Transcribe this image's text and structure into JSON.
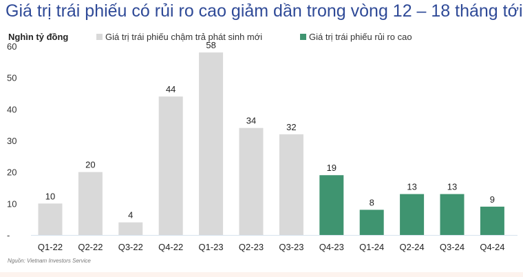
{
  "chart_data": {
    "type": "bar",
    "title": "Giá trị trái phiếu có rủi ro cao giảm dần trong vòng 12 – 18 tháng tới",
    "ylabel": "Nghìn tỷ đồng",
    "ylim": [
      0,
      60
    ],
    "yticks": [
      "-",
      "10",
      "20",
      "30",
      "40",
      "50",
      "60"
    ],
    "grid": false,
    "legend_placement": "top",
    "categories": [
      "Q1-22",
      "Q2-22",
      "Q3-22",
      "Q4-22",
      "Q1-23",
      "Q2-23",
      "Q3-23",
      "Q4-23",
      "Q1-24",
      "Q2-24",
      "Q3-24",
      "Q4-24"
    ],
    "values": [
      10,
      20,
      4,
      44,
      58,
      34,
      32,
      19,
      8,
      13,
      13,
      9
    ],
    "series_of_each": [
      0,
      0,
      0,
      0,
      0,
      0,
      0,
      1,
      1,
      1,
      1,
      1
    ],
    "series": [
      {
        "name": "Giá trị trái phiếu chậm trả phát sinh mới",
        "color": "#d9d9d9"
      },
      {
        "name": "Giá trị trái phiếu rủi ro cao",
        "color": "#3f9470"
      }
    ],
    "source": "Nguồn: Vietnam Investors Service"
  }
}
